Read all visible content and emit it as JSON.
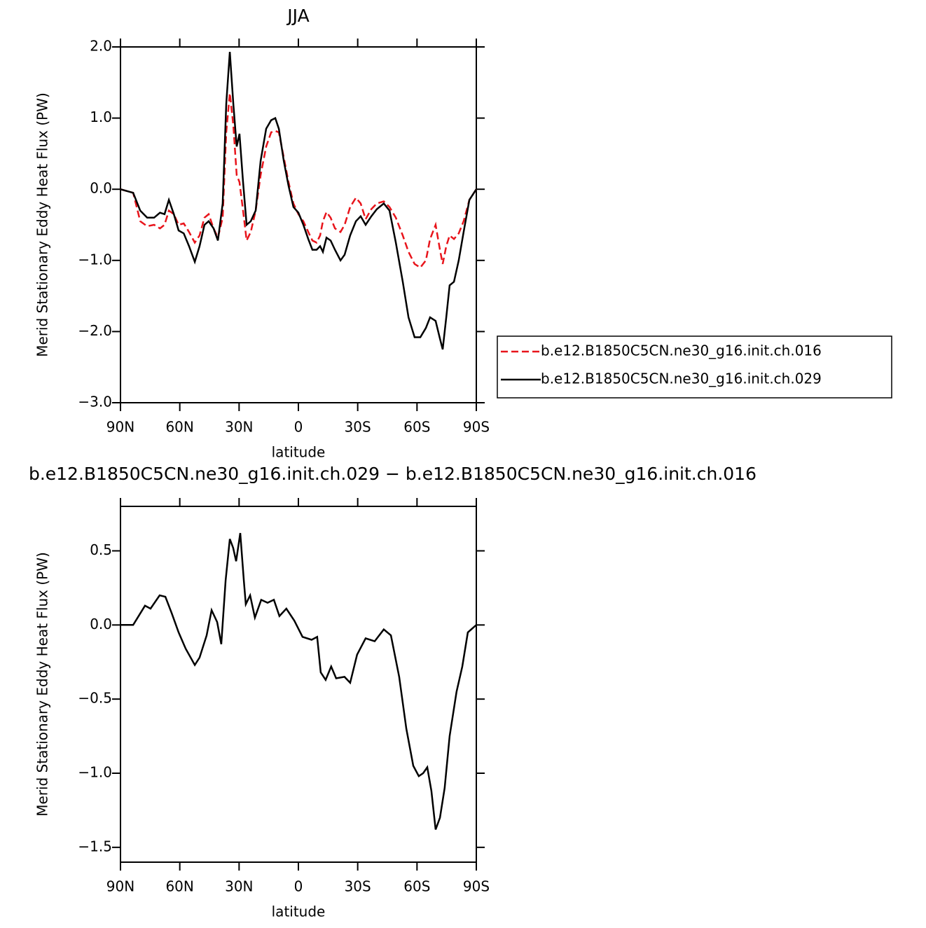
{
  "chart_data": [
    {
      "type": "line",
      "title": "JJA",
      "x_label": "latitude",
      "y_label": "Merid Stationary Eddy Heat Flux (PW)",
      "x": [
        90,
        83.6,
        80,
        76.5,
        73,
        70,
        67.7,
        65.5,
        63,
        60.6,
        58,
        55.3,
        52.4,
        50,
        47.5,
        45.4,
        42.9,
        40.7,
        38.3,
        36.5,
        34.7,
        32.9,
        31.2,
        29.8,
        28,
        26.2,
        24.1,
        21.6,
        19.1,
        16.3,
        13.8,
        11.7,
        9.9,
        7.4,
        5,
        2.5,
        0,
        -2.5,
        -5,
        -7.1,
        -9.2,
        -11,
        -12.4,
        -14.2,
        -16.3,
        -18.5,
        -21.3,
        -23.4,
        -26.2,
        -29.1,
        -31.5,
        -34,
        -36.9,
        -39.7,
        -43.2,
        -46.1,
        -49.3,
        -52.8,
        -55.7,
        -58.8,
        -61.7,
        -64.5,
        -66.6,
        -69.4,
        -71.6,
        -73,
        -74.8,
        -76.5,
        -78.7,
        -81.1,
        -83.6,
        -86.5,
        -90
      ],
      "series": [
        {
          "name": "b.e12.B1850C5CN.ne30_g16.init.ch.016",
          "color": "#e8141b",
          "dashed": true,
          "values": [
            0,
            -0.05,
            -0.45,
            -0.52,
            -0.5,
            -0.55,
            -0.5,
            -0.3,
            -0.35,
            -0.5,
            -0.48,
            -0.6,
            -0.75,
            -0.65,
            -0.4,
            -0.35,
            -0.55,
            -0.68,
            -0.4,
            0.8,
            1.35,
            0.9,
            0.2,
            0.1,
            -0.3,
            -0.72,
            -0.6,
            -0.3,
            0.2,
            0.6,
            0.8,
            0.82,
            0.8,
            0.45,
            0.1,
            -0.2,
            -0.35,
            -0.45,
            -0.6,
            -0.72,
            -0.75,
            -0.65,
            -0.45,
            -0.32,
            -0.4,
            -0.55,
            -0.6,
            -0.5,
            -0.25,
            -0.12,
            -0.2,
            -0.42,
            -0.28,
            -0.2,
            -0.17,
            -0.25,
            -0.4,
            -0.65,
            -0.88,
            -1.05,
            -1.1,
            -1.0,
            -0.7,
            -0.5,
            -0.85,
            -1.05,
            -0.8,
            -0.65,
            -0.7,
            -0.62,
            -0.45,
            -0.15,
            0
          ]
        },
        {
          "name": "b.e12.B1850C5CN.ne30_g16.init.ch.029",
          "color": "#000000",
          "dashed": false,
          "values": [
            0,
            -0.05,
            -0.3,
            -0.4,
            -0.4,
            -0.33,
            -0.35,
            -0.15,
            -0.35,
            -0.58,
            -0.62,
            -0.8,
            -1.02,
            -0.8,
            -0.5,
            -0.45,
            -0.55,
            -0.72,
            -0.2,
            1.2,
            1.93,
            1.2,
            0.6,
            0.78,
            0.1,
            -0.5,
            -0.45,
            -0.3,
            0.4,
            0.85,
            0.97,
            1.0,
            0.85,
            0.4,
            0.05,
            -0.25,
            -0.33,
            -0.5,
            -0.7,
            -0.85,
            -0.85,
            -0.8,
            -0.88,
            -0.68,
            -0.72,
            -0.85,
            -1.0,
            -0.92,
            -0.65,
            -0.45,
            -0.38,
            -0.5,
            -0.38,
            -0.28,
            -0.2,
            -0.3,
            -0.75,
            -1.3,
            -1.8,
            -2.08,
            -2.08,
            -1.95,
            -1.8,
            -1.85,
            -2.1,
            -2.25,
            -1.8,
            -1.35,
            -1.3,
            -1.0,
            -0.6,
            -0.15,
            0
          ]
        }
      ],
      "xlim": [
        90,
        -90
      ],
      "xticks": [
        {
          "value": 90,
          "label": "90N"
        },
        {
          "value": 60,
          "label": "60N"
        },
        {
          "value": 30,
          "label": "30N"
        },
        0,
        {
          "value": -30,
          "label": "30S"
        },
        {
          "value": -60,
          "label": "60S"
        },
        {
          "value": -90,
          "label": "90S"
        }
      ],
      "ylim": [
        -3,
        2
      ],
      "yticks": [
        {
          "value": -3,
          "label": "−3.0"
        },
        {
          "value": -2,
          "label": "−2.0"
        },
        {
          "value": -1,
          "label": "−1.0"
        },
        {
          "value": 0,
          "label": "0.0"
        },
        {
          "value": 1,
          "label": "1.0"
        },
        {
          "value": 2,
          "label": "2.0"
        }
      ],
      "legend": "right"
    },
    {
      "type": "line",
      "title": "b.e12.B1850C5CN.ne30_g16.init.ch.029 − b.e12.B1850C5CN.ne30_g16.init.ch.016",
      "x_label": "latitude",
      "y_label": "Merid Stationary Eddy Heat Flux (PW)",
      "x": [
        90,
        83.6,
        77.6,
        74.8,
        70.2,
        67.3,
        64.1,
        60.6,
        57.0,
        52.4,
        50.0,
        46.4,
        43.9,
        41.1,
        39.0,
        36.8,
        34.7,
        33.0,
        31.5,
        29.4,
        27.6,
        26.6,
        24.4,
        22.0,
        18.8,
        15.6,
        12.4,
        9.6,
        6.1,
        2.1,
        -2.1,
        -6.7,
        -9.5,
        -11.3,
        -13.8,
        -16.6,
        -19.1,
        -23.3,
        -26.2,
        -29.7,
        -34.0,
        -38.6,
        -43.2,
        -46.8,
        -51.0,
        -54.6,
        -58.1,
        -60.9,
        -63.1,
        -65.2,
        -67.3,
        -69.4,
        -71.6,
        -74.0,
        -76.5,
        -80.0,
        -82.9,
        -85.7,
        -90
      ],
      "series": [
        {
          "color": "#000000",
          "dashed": false,
          "values": [
            0,
            0,
            0.13,
            0.11,
            0.2,
            0.19,
            0.08,
            -0.05,
            -0.16,
            -0.27,
            -0.22,
            -0.07,
            0.1,
            0.02,
            -0.13,
            0.3,
            0.58,
            0.52,
            0.43,
            0.62,
            0.3,
            0.14,
            0.2,
            0.05,
            0.17,
            0.15,
            0.17,
            0.06,
            0.11,
            0.03,
            -0.08,
            -0.1,
            -0.08,
            -0.32,
            -0.37,
            -0.28,
            -0.36,
            -0.35,
            -0.39,
            -0.2,
            -0.09,
            -0.11,
            -0.03,
            -0.07,
            -0.35,
            -0.7,
            -0.95,
            -1.02,
            -1.0,
            -0.96,
            -1.12,
            -1.38,
            -1.3,
            -1.1,
            -0.75,
            -0.45,
            -0.28,
            -0.05,
            0
          ]
        }
      ],
      "xlim": [
        90,
        -90
      ],
      "xticks": [
        {
          "value": 90,
          "label": "90N"
        },
        {
          "value": 60,
          "label": "60N"
        },
        {
          "value": 30,
          "label": "30N"
        },
        0,
        {
          "value": -30,
          "label": "30S"
        },
        {
          "value": -60,
          "label": "60S"
        },
        {
          "value": -90,
          "label": "90S"
        }
      ],
      "ylim": [
        -1.6,
        0.8
      ],
      "yticks": [
        {
          "value": -1.5,
          "label": "−1.5"
        },
        {
          "value": -1,
          "label": "−1.0"
        },
        {
          "value": -0.5,
          "label": "−0.5"
        },
        {
          "value": 0,
          "label": "0.0"
        },
        0.5
      ]
    }
  ]
}
